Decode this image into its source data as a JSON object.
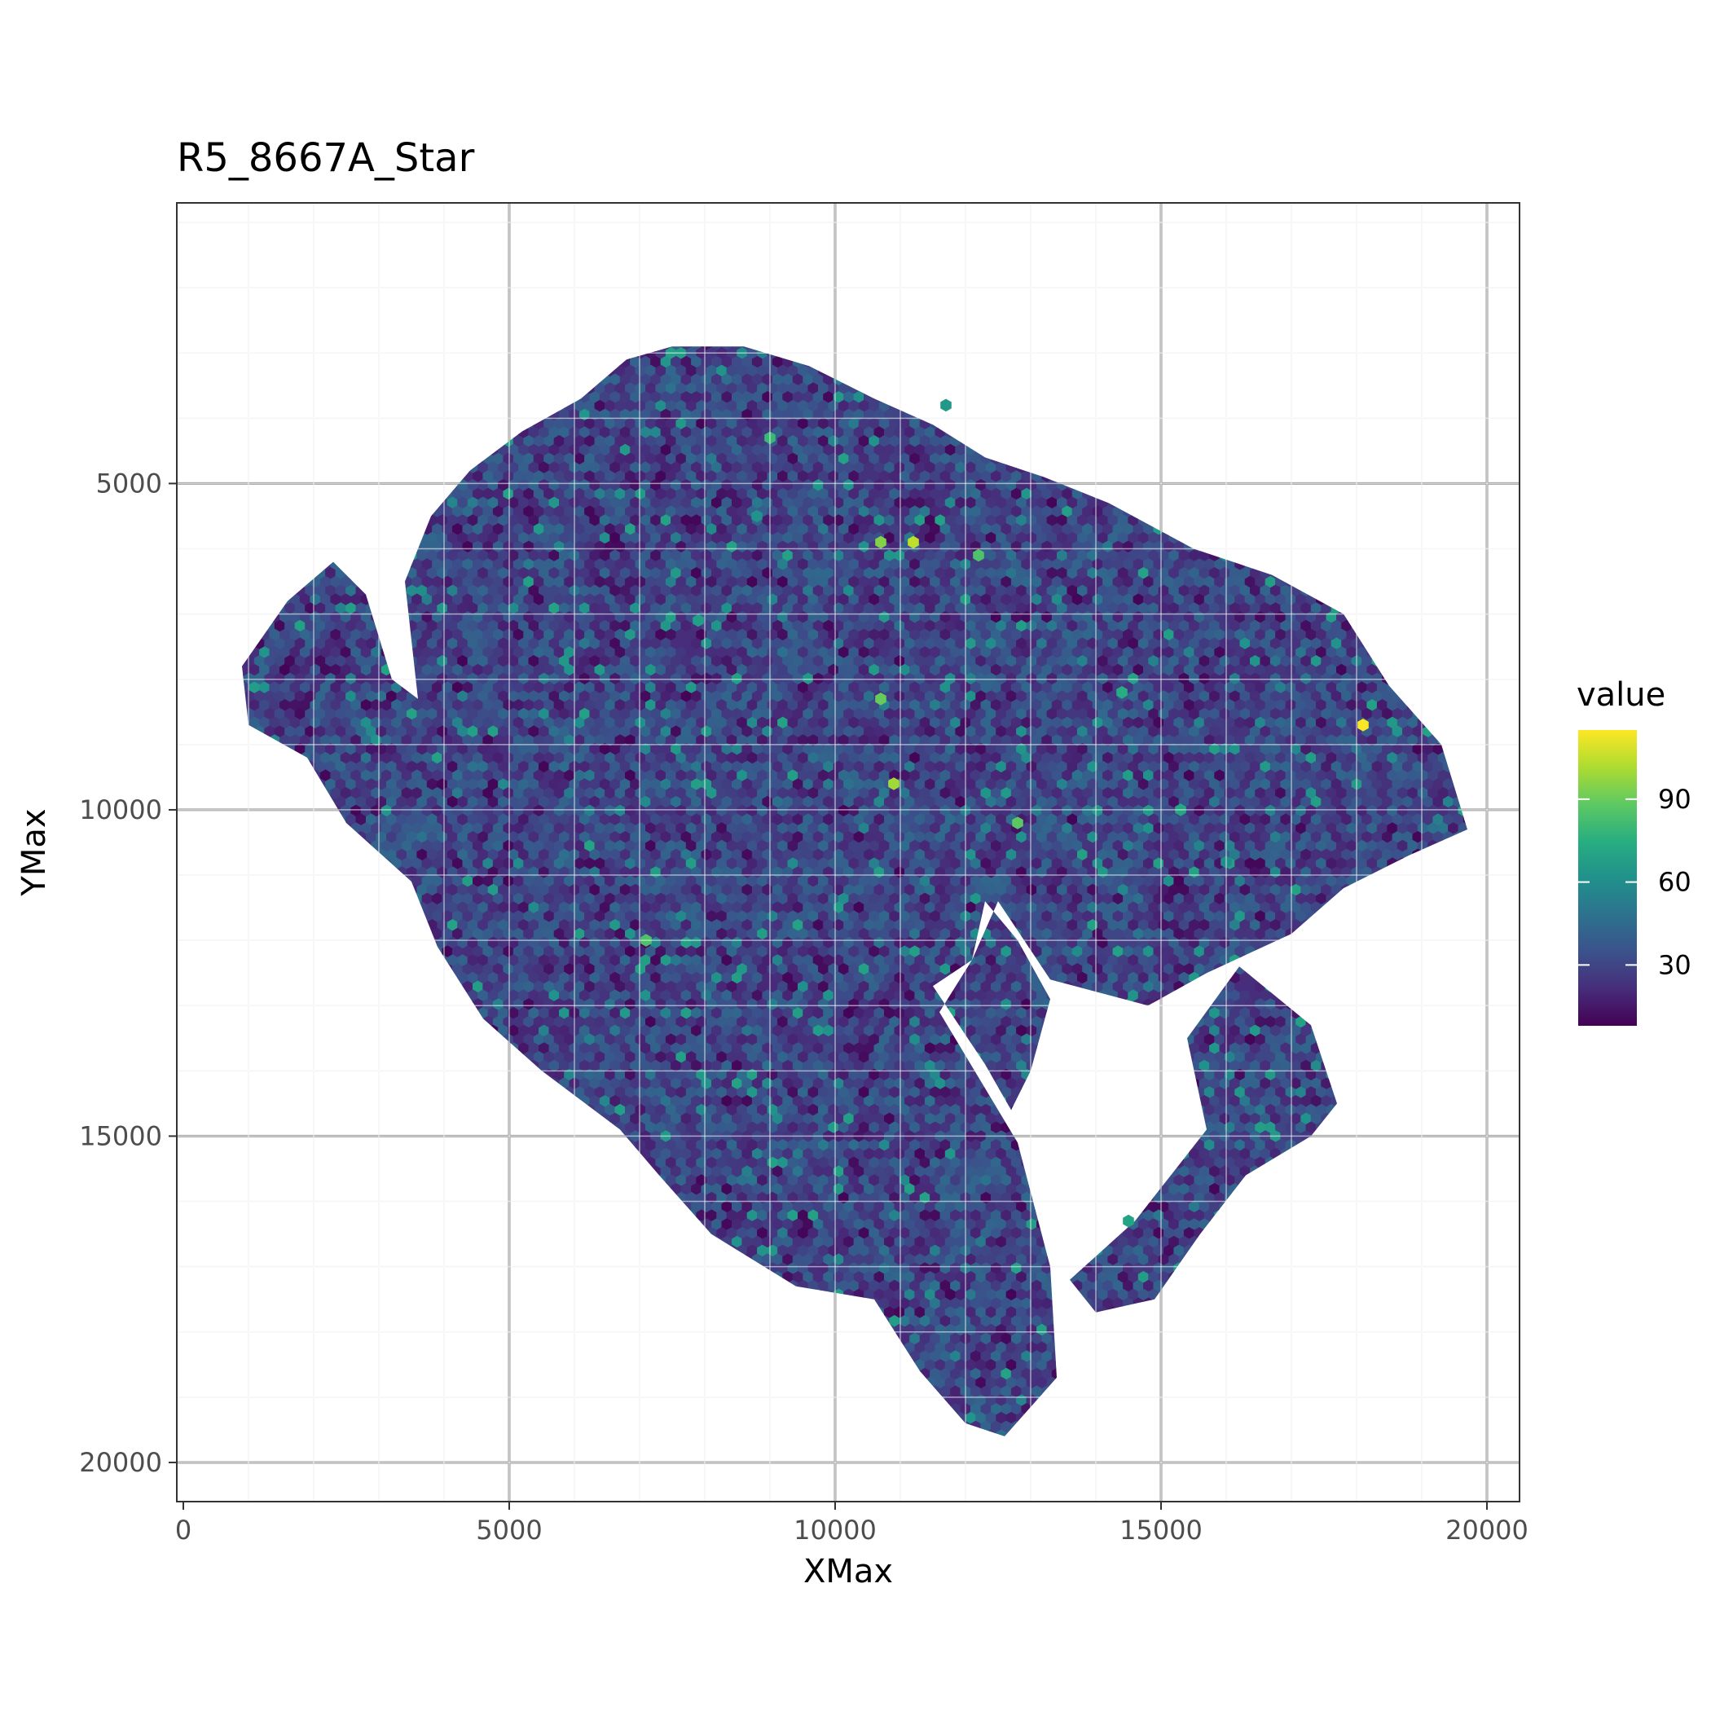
{
  "chart_data": {
    "type": "heatmap",
    "subtype": "hexbin",
    "title": "R5_8667A_Star",
    "xlabel": "XMax",
    "ylabel": "YMax",
    "x_ticks": [
      "0",
      "5000",
      "10000",
      "15000",
      "20000"
    ],
    "y_ticks": [
      "5000",
      "10000",
      "15000",
      "20000"
    ],
    "xlim": [
      -100,
      20500
    ],
    "ylim_reversed": [
      700,
      20600
    ],
    "y_axis_reversed": true,
    "grid": true,
    "theme": "bw",
    "legend": {
      "title": "value",
      "position": "right",
      "ticks": [
        "30",
        "60",
        "90"
      ],
      "range": [
        8,
        115
      ],
      "colormap": "viridis"
    },
    "tissue_outline_data_units": [
      [
        8600,
        2900
      ],
      [
        9600,
        3200
      ],
      [
        10600,
        3700
      ],
      [
        11500,
        4100
      ],
      [
        12300,
        4600
      ],
      [
        13200,
        4900
      ],
      [
        14200,
        5300
      ],
      [
        15500,
        6000
      ],
      [
        16700,
        6400
      ],
      [
        17800,
        7000
      ],
      [
        18500,
        8100
      ],
      [
        19300,
        9000
      ],
      [
        19700,
        10300
      ],
      [
        18800,
        10700
      ],
      [
        17800,
        11200
      ],
      [
        17000,
        11900
      ],
      [
        15700,
        12500
      ],
      [
        14800,
        13000
      ],
      [
        13300,
        12600
      ],
      [
        12500,
        11400
      ],
      [
        12100,
        12300
      ],
      [
        11600,
        13100
      ],
      [
        12800,
        15100
      ],
      [
        13300,
        17000
      ],
      [
        13400,
        18700
      ],
      [
        12600,
        19600
      ],
      [
        12000,
        19400
      ],
      [
        11300,
        18600
      ],
      [
        10600,
        17500
      ],
      [
        9400,
        17300
      ],
      [
        8100,
        16500
      ],
      [
        7300,
        15600
      ],
      [
        6700,
        14900
      ],
      [
        5500,
        14000
      ],
      [
        4600,
        13200
      ],
      [
        3900,
        12100
      ],
      [
        3500,
        11100
      ],
      [
        2500,
        10200
      ],
      [
        1900,
        9200
      ],
      [
        1000,
        8700
      ],
      [
        900,
        7800
      ],
      [
        1600,
        6800
      ],
      [
        2300,
        6200
      ],
      [
        2800,
        6700
      ],
      [
        3200,
        8000
      ],
      [
        3600,
        8300
      ],
      [
        3400,
        6500
      ],
      [
        3800,
        5500
      ],
      [
        4400,
        4800
      ],
      [
        5200,
        4200
      ],
      [
        6100,
        3700
      ],
      [
        6800,
        3100
      ],
      [
        7500,
        2900
      ]
    ],
    "tissue_gap_data_units": [
      [
        12300,
        11400
      ],
      [
        12800,
        12000
      ],
      [
        13300,
        12900
      ],
      [
        13000,
        14000
      ],
      [
        12700,
        14600
      ],
      [
        12300,
        13900
      ],
      [
        11500,
        12700
      ],
      [
        12100,
        12300
      ]
    ],
    "tissue_lobe_data_units": [
      [
        16200,
        12400
      ],
      [
        17300,
        13300
      ],
      [
        17700,
        14500
      ],
      [
        17300,
        15000
      ],
      [
        16300,
        15600
      ],
      [
        15600,
        16500
      ],
      [
        14900,
        17500
      ],
      [
        14000,
        17700
      ],
      [
        13600,
        17200
      ],
      [
        14600,
        16300
      ],
      [
        15700,
        14900
      ],
      [
        15400,
        13500
      ]
    ],
    "hexbin_description": "dense hexagon bins over the tissue region, values mostly 15-45 with scattered higher bins up to ~115",
    "high_value_bins": [
      {
        "x": 18100,
        "y": 8700,
        "value": 115
      },
      {
        "x": 11200,
        "y": 5900,
        "value": 105
      },
      {
        "x": 10900,
        "y": 9600,
        "value": 100
      },
      {
        "x": 10700,
        "y": 5900,
        "value": 95
      },
      {
        "x": 10700,
        "y": 8300,
        "value": 90
      },
      {
        "x": 12800,
        "y": 10200,
        "value": 88
      },
      {
        "x": 7100,
        "y": 12000,
        "value": 85
      },
      {
        "x": 12200,
        "y": 6100,
        "value": 85
      },
      {
        "x": 9000,
        "y": 4300,
        "value": 80
      },
      {
        "x": 14400,
        "y": 8200,
        "value": 75
      },
      {
        "x": 15300,
        "y": 10000,
        "value": 72
      },
      {
        "x": 14500,
        "y": 16300,
        "value": 70
      },
      {
        "x": 7900,
        "y": 7100,
        "value": 68
      },
      {
        "x": 11700,
        "y": 3800,
        "value": 65
      },
      {
        "x": 8800,
        "y": 5500,
        "value": 62
      },
      {
        "x": 16000,
        "y": 10800,
        "value": 60
      }
    ]
  }
}
